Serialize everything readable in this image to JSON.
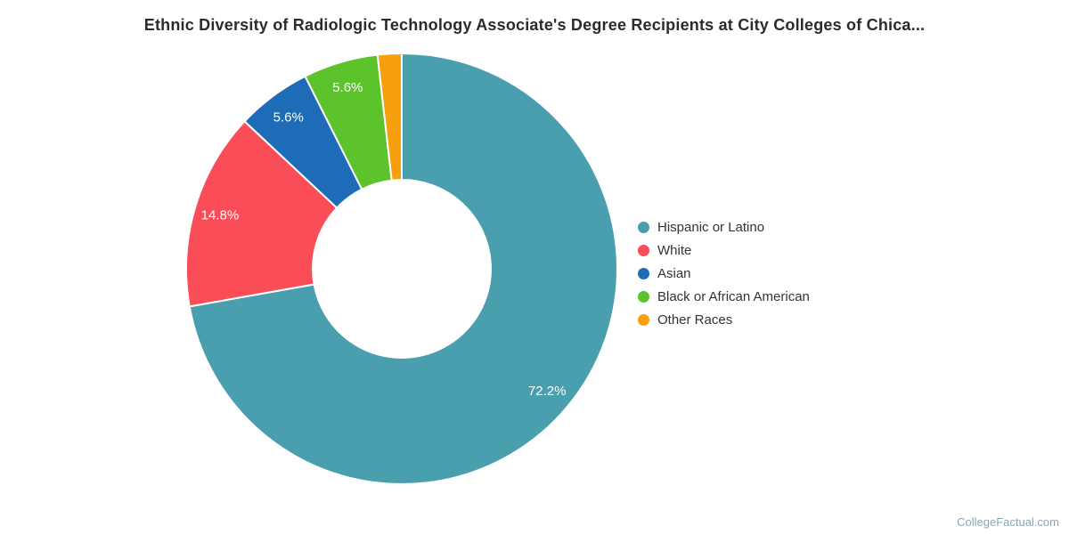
{
  "chart_data": {
    "type": "pie",
    "subtype": "donut",
    "title": "Ethnic Diversity of Radiologic Technology Associate's Degree Recipients at City Colleges of Chica...",
    "legend_position": "right",
    "direction": "clockwise",
    "start_angle_deg": 0,
    "inner_radius_ratio": 0.413,
    "slice_label_color": "#ffffff",
    "slices": [
      {
        "name": "Hispanic or Latino",
        "value": 72.2,
        "label": "72.2%",
        "color": "#4A9FAF"
      },
      {
        "name": "White",
        "value": 14.8,
        "label": "14.8%",
        "color": "#FA4D58"
      },
      {
        "name": "Asian",
        "value": 5.6,
        "label": "5.6%",
        "color": "#1E6CB8"
      },
      {
        "name": "Black or African American",
        "value": 5.6,
        "label": "5.6%",
        "color": "#5DC32D"
      },
      {
        "name": "Other Races",
        "value": 1.8,
        "label": "",
        "color": "#F89F0D"
      }
    ]
  },
  "footer": {
    "watermark": "CollegeFactual.com",
    "watermark_color": "#84A9B6"
  }
}
